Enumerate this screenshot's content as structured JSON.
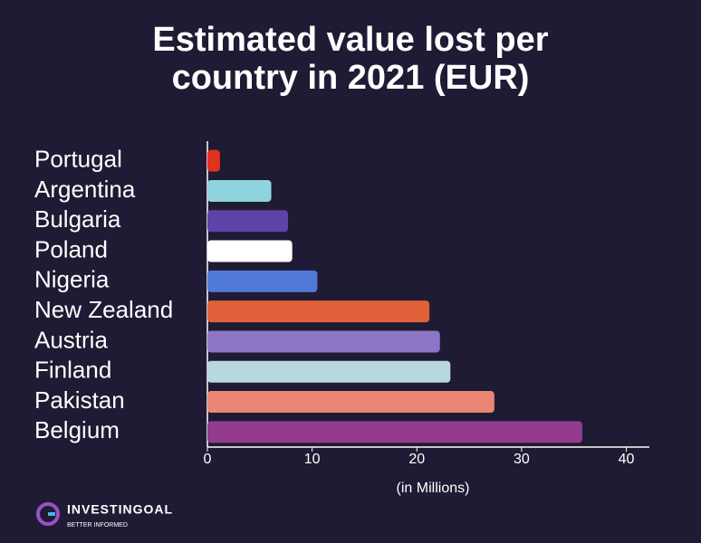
{
  "chart_data": {
    "type": "hbar",
    "title": "Estimated value lost per country in 2021 (EUR)",
    "xlabel": "(in Millions)",
    "categories": [
      "Portugal",
      "Argentina",
      "Bulgaria",
      "Poland",
      "Nigeria",
      "New Zealand",
      "Austria",
      "Finland",
      "Pakistan",
      "Belgium"
    ],
    "values": [
      1.2,
      6.1,
      7.7,
      8.1,
      10.5,
      21.2,
      22.2,
      23.2,
      27.4,
      35.8
    ],
    "colors": [
      "#e0321e",
      "#8fd3dc",
      "#5d42a8",
      "#ffffff",
      "#4f79d4",
      "#e0613a",
      "#8d76c6",
      "#b7d8de",
      "#ec8674",
      "#943b8e"
    ],
    "xlim": [
      0,
      42.2
    ],
    "xticks": [
      0,
      10,
      20,
      30,
      40
    ],
    "grid": false
  },
  "logo": {
    "name": "INVESTINGOAL",
    "tagline": "BETTER INFORMED"
  }
}
